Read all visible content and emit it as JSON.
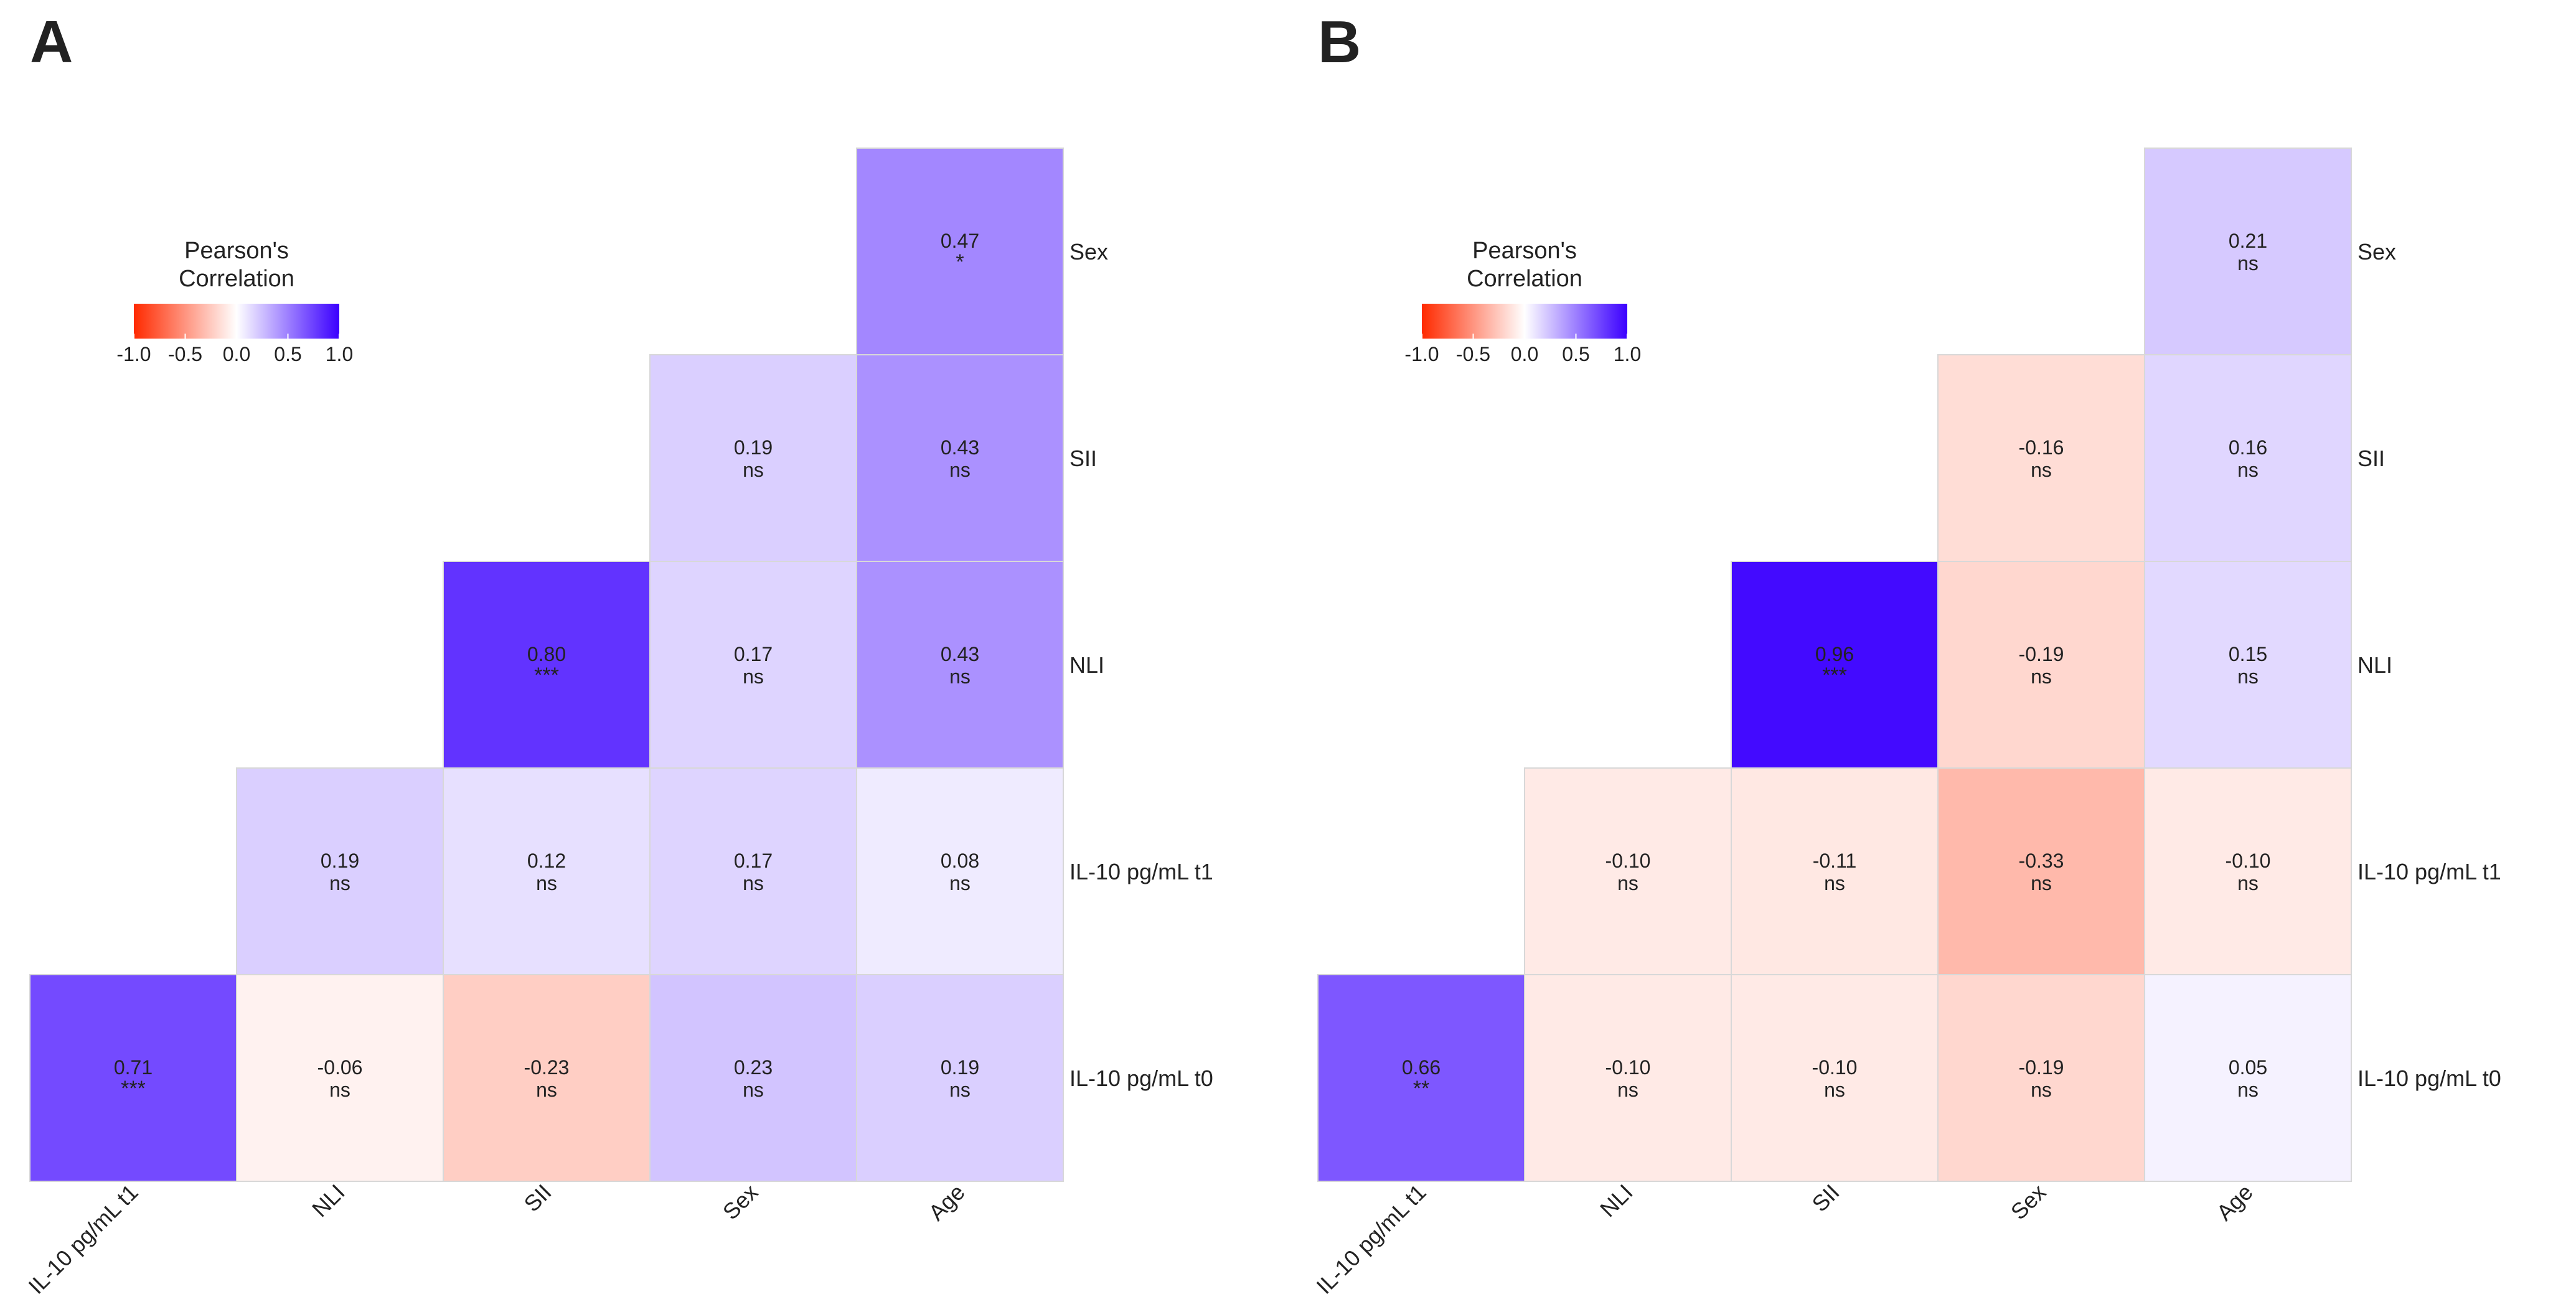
{
  "chart_data": [
    {
      "type": "heatmap",
      "panel_label": "A",
      "title": "",
      "legend": {
        "title_line1": "Pearson's",
        "title_line2": "Correlation",
        "ticks": [
          "-1.0",
          "-0.5",
          "0.0",
          "0.5",
          "1.0"
        ],
        "range": [
          -1,
          1
        ],
        "low_color": "#ff2a00",
        "mid_color": "#ffffff",
        "high_color": "#3b00ff",
        "placement": "top-left"
      },
      "x_labels": [
        "IL-10 pg/mL t1",
        "NLI",
        "SII",
        "Sex",
        "Age"
      ],
      "y_labels": [
        "Sex",
        "SII",
        "NLI",
        "IL-10 pg/mL t1",
        "IL-10 pg/mL t0"
      ],
      "cells": [
        {
          "row": 0,
          "col": 4,
          "value": 0.47,
          "label": "0.47",
          "sig": "*"
        },
        {
          "row": 1,
          "col": 3,
          "value": 0.19,
          "label": "0.19",
          "sig": "ns"
        },
        {
          "row": 1,
          "col": 4,
          "value": 0.43,
          "label": "0.43",
          "sig": "ns"
        },
        {
          "row": 2,
          "col": 2,
          "value": 0.8,
          "label": "0.80",
          "sig": "***"
        },
        {
          "row": 2,
          "col": 3,
          "value": 0.17,
          "label": "0.17",
          "sig": "ns"
        },
        {
          "row": 2,
          "col": 4,
          "value": 0.43,
          "label": "0.43",
          "sig": "ns"
        },
        {
          "row": 3,
          "col": 1,
          "value": 0.19,
          "label": "0.19",
          "sig": "ns"
        },
        {
          "row": 3,
          "col": 2,
          "value": 0.12,
          "label": "0.12",
          "sig": "ns"
        },
        {
          "row": 3,
          "col": 3,
          "value": 0.17,
          "label": "0.17",
          "sig": "ns"
        },
        {
          "row": 3,
          "col": 4,
          "value": 0.08,
          "label": "0.08",
          "sig": "ns"
        },
        {
          "row": 4,
          "col": 0,
          "value": 0.71,
          "label": "0.71",
          "sig": "***"
        },
        {
          "row": 4,
          "col": 1,
          "value": -0.06,
          "label": "-0.06",
          "sig": "ns"
        },
        {
          "row": 4,
          "col": 2,
          "value": -0.23,
          "label": "-0.23",
          "sig": "ns"
        },
        {
          "row": 4,
          "col": 3,
          "value": 0.23,
          "label": "0.23",
          "sig": "ns"
        },
        {
          "row": 4,
          "col": 4,
          "value": 0.19,
          "label": "0.19",
          "sig": "ns"
        }
      ]
    },
    {
      "type": "heatmap",
      "panel_label": "B",
      "title": "",
      "legend": {
        "title_line1": "Pearson's",
        "title_line2": "Correlation",
        "ticks": [
          "-1.0",
          "-0.5",
          "0.0",
          "0.5",
          "1.0"
        ],
        "range": [
          -1,
          1
        ],
        "low_color": "#ff2a00",
        "mid_color": "#ffffff",
        "high_color": "#3b00ff",
        "placement": "top-left"
      },
      "x_labels": [
        "IL-10 pg/mL t1",
        "NLI",
        "SII",
        "Sex",
        "Age"
      ],
      "y_labels": [
        "Sex",
        "SII",
        "NLI",
        "IL-10 pg/mL t1",
        "IL-10 pg/mL t0"
      ],
      "cells": [
        {
          "row": 0,
          "col": 4,
          "value": 0.21,
          "label": "0.21",
          "sig": "ns"
        },
        {
          "row": 1,
          "col": 3,
          "value": -0.16,
          "label": "-0.16",
          "sig": "ns"
        },
        {
          "row": 1,
          "col": 4,
          "value": 0.16,
          "label": "0.16",
          "sig": "ns"
        },
        {
          "row": 2,
          "col": 2,
          "value": 0.96,
          "label": "0.96",
          "sig": "***"
        },
        {
          "row": 2,
          "col": 3,
          "value": -0.19,
          "label": "-0.19",
          "sig": "ns"
        },
        {
          "row": 2,
          "col": 4,
          "value": 0.15,
          "label": "0.15",
          "sig": "ns"
        },
        {
          "row": 3,
          "col": 1,
          "value": -0.1,
          "label": "-0.10",
          "sig": "ns"
        },
        {
          "row": 3,
          "col": 2,
          "value": -0.11,
          "label": "-0.11",
          "sig": "ns"
        },
        {
          "row": 3,
          "col": 3,
          "value": -0.33,
          "label": "-0.33",
          "sig": "ns"
        },
        {
          "row": 3,
          "col": 4,
          "value": -0.1,
          "label": "-0.10",
          "sig": "ns"
        },
        {
          "row": 4,
          "col": 0,
          "value": 0.66,
          "label": "0.66",
          "sig": "**"
        },
        {
          "row": 4,
          "col": 1,
          "value": -0.1,
          "label": "-0.10",
          "sig": "ns"
        },
        {
          "row": 4,
          "col": 2,
          "value": -0.1,
          "label": "-0.10",
          "sig": "ns"
        },
        {
          "row": 4,
          "col": 3,
          "value": -0.19,
          "label": "-0.19",
          "sig": "ns"
        },
        {
          "row": 4,
          "col": 4,
          "value": 0.05,
          "label": "0.05",
          "sig": "ns"
        }
      ]
    }
  ]
}
